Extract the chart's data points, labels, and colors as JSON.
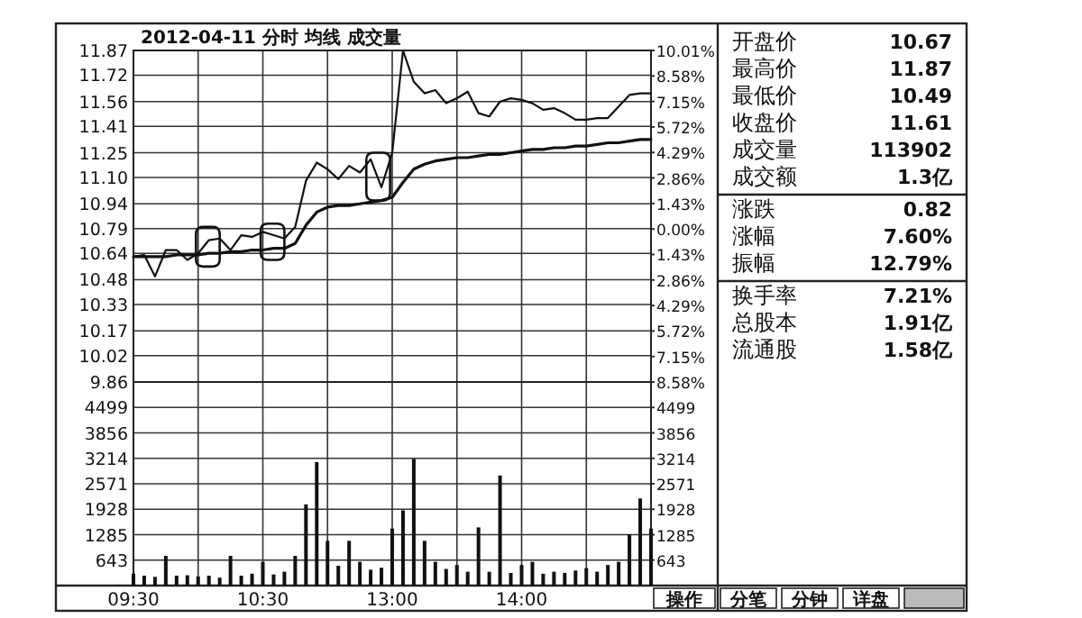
{
  "chart_data": [
    {
      "type": "line",
      "title": "2012-04-11 分时 均线 成交量",
      "grid": true,
      "tick_labels": "y",
      "categories": [
        null,
        null,
        null,
        null,
        null,
        null,
        null,
        null,
        null,
        null,
        null,
        null,
        null,
        null,
        null,
        null,
        null,
        null,
        null,
        null,
        null,
        null,
        null,
        null,
        null,
        null,
        null,
        null,
        null,
        null,
        null,
        null,
        null,
        null,
        null,
        null,
        null,
        null,
        null,
        null,
        null,
        null,
        null,
        null,
        null,
        null,
        null,
        null,
        null
      ],
      "ylim": [
        9.86,
        11.87
      ],
      "yticks": [
        11.87,
        11.72,
        11.56,
        11.41,
        11.25,
        {
          "value": 11.1,
          "label": "11.10"
        },
        10.94,
        10.79,
        10.64,
        10.48,
        10.33,
        10.17,
        10.02,
        9.86
      ],
      "y2lim": [
        -8.58,
        10.01
      ],
      "y2ticks": [
        {
          "value": 10.01,
          "label": "10.01%"
        },
        {
          "value": 8.58,
          "label": "8.58%"
        },
        {
          "value": 7.15,
          "label": "7.15%"
        },
        {
          "value": 5.72,
          "label": "5.72%"
        },
        {
          "value": 4.29,
          "label": "4.29%"
        },
        {
          "value": 2.86,
          "label": "2.86%"
        },
        {
          "value": 1.43,
          "label": "1.43%"
        },
        {
          "value": 0,
          "label": "0.00%"
        },
        {
          "value": -1.43,
          "label": "1.43%"
        },
        {
          "value": -2.86,
          "label": "2.86%"
        },
        {
          "value": -4.29,
          "label": "4.29%"
        },
        {
          "value": -5.72,
          "label": "5.72%"
        },
        {
          "value": -7.15,
          "label": "7.15%"
        },
        {
          "value": -8.58,
          "label": "8.58%"
        }
      ],
      "series": [
        {
          "color": "#111111",
          "values": [
            10.62,
            10.63,
            10.5,
            10.66,
            10.66,
            10.6,
            10.64,
            10.72,
            10.73,
            10.66,
            10.75,
            10.74,
            10.77,
            10.75,
            10.73,
            10.8,
            11.08,
            11.19,
            11.15,
            11.09,
            11.17,
            11.13,
            11.21,
            11.04,
            11.25,
            11.87,
            11.68,
            11.61,
            11.63,
            11.55,
            11.58,
            11.62,
            11.49,
            11.47,
            11.56,
            11.58,
            11.57,
            11.55,
            11.51,
            11.52,
            11.49,
            11.45,
            11.45,
            11.46,
            11.46,
            11.53,
            11.6,
            11.61,
            11.61
          ]
        },
        {
          "color": "#111111",
          "values": [
            10.62,
            10.62,
            10.62,
            10.62,
            10.63,
            10.63,
            10.63,
            10.64,
            10.64,
            10.65,
            10.65,
            10.66,
            10.66,
            10.67,
            10.67,
            10.7,
            10.81,
            10.89,
            10.92,
            10.93,
            10.93,
            10.94,
            10.95,
            10.96,
            10.98,
            11.07,
            11.15,
            11.18,
            11.2,
            11.21,
            11.22,
            11.22,
            11.23,
            11.24,
            11.24,
            11.25,
            11.26,
            11.27,
            11.27,
            11.28,
            11.28,
            11.29,
            11.29,
            11.3,
            11.31,
            11.31,
            11.32,
            11.33,
            11.33
          ]
        }
      ]
    },
    {
      "type": "bar",
      "color": "#111111",
      "grid": true,
      "categories": [
        "09:30",
        null,
        null,
        null,
        null,
        null,
        null,
        null,
        null,
        null,
        null,
        null,
        "10:30",
        null,
        null,
        null,
        null,
        null,
        null,
        null,
        null,
        null,
        null,
        null,
        "13:00",
        null,
        null,
        null,
        null,
        null,
        null,
        null,
        null,
        null,
        null,
        null,
        "14:00",
        null,
        null,
        null,
        null,
        null,
        null,
        null,
        null,
        null,
        null,
        null,
        null
      ],
      "ylim": [
        0,
        5142
      ],
      "yticks": [
        643,
        1285,
        1928,
        2571,
        3214,
        3856,
        4499
      ],
      "y2lim": [
        0,
        5142
      ],
      "y2ticks": [
        643,
        1285,
        1928,
        2571,
        3214,
        3856,
        4499
      ],
      "values": [
        300,
        250,
        220,
        750,
        250,
        260,
        230,
        250,
        200,
        750,
        250,
        300,
        600,
        280,
        350,
        750,
        2050,
        3120,
        1130,
        500,
        1130,
        600,
        400,
        450,
        1440,
        1900,
        3200,
        1130,
        600,
        420,
        520,
        350,
        1470,
        350,
        2780,
        320,
        520,
        600,
        300,
        350,
        320,
        380,
        440,
        350,
        520,
        600,
        1290,
        2200,
        1440
      ]
    },
    {
      "type": "other",
      "categories": [
        "开盘价",
        "最高价",
        "最低价",
        "收盘价",
        "成交量",
        "成交额",
        "涨跌",
        "涨幅",
        "振幅",
        "换手率",
        "总股本",
        "流通股"
      ],
      "value_labels": [
        "10.67",
        "11.87",
        "10.49",
        "11.61",
        "113902",
        "1.3亿",
        "0.82",
        "7.60%",
        "12.79%",
        "7.21%",
        "1.91亿",
        "1.58亿"
      ],
      "annotations": [
        "操作",
        "分笔",
        "分钟",
        "详盘"
      ]
    }
  ]
}
